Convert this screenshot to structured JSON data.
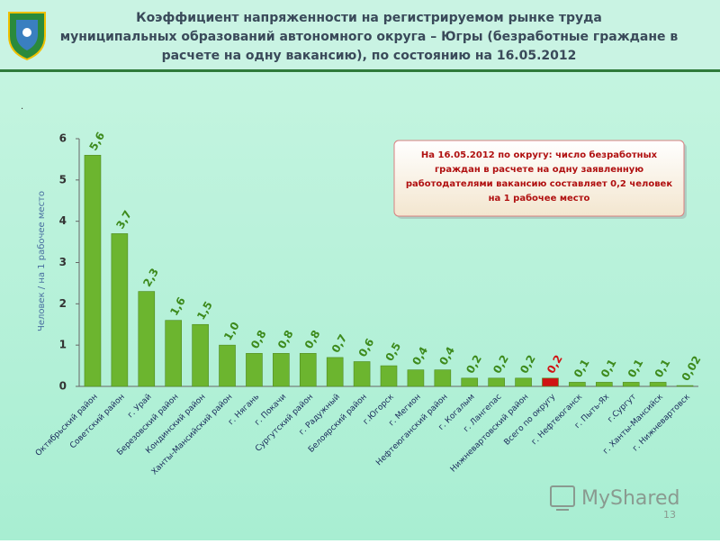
{
  "header": {
    "title": [
      "Коэффициент напряженности на регистрируемом рынке труда",
      "муниципальных образований автономного округа – Югры (безработные граждане в",
      "расчете на одну вакансию), по состоянию на 16.05.2012"
    ]
  },
  "chart_data": {
    "type": "bar",
    "ylabel": "Человек / на 1 рабочее место",
    "categories": [
      "Октябрьский район",
      "Советский район",
      "г. Урай",
      "Березовский район",
      "Кондинский район",
      "Ханты-Мансийский район",
      "г. Нягань",
      "г. Покачи",
      "Сургутский район",
      "г. Радужный",
      "Белоярский район",
      "г.Югорск",
      "г. Мегион",
      "Нефтеюганский район",
      "г. Когалым",
      "г. Лангепас",
      "Нижневартовский район",
      "Всего по округу",
      "г. Нефтеюганск",
      "г. Пыть-Ях",
      "г.Сургут",
      "г. Ханты-Мансийск",
      "г. Нижневартовск"
    ],
    "values": [
      5.6,
      3.7,
      2.3,
      1.6,
      1.5,
      1.0,
      0.8,
      0.8,
      0.8,
      0.7,
      0.6,
      0.5,
      0.4,
      0.4,
      0.2,
      0.2,
      0.2,
      0.2,
      0.1,
      0.1,
      0.1,
      0.1,
      0.02
    ],
    "value_labels": [
      "5,6",
      "3,7",
      "2,3",
      "1,6",
      "1,5",
      "1,0",
      "0,8",
      "0,8",
      "0,8",
      "0,7",
      "0,6",
      "0,5",
      "0,4",
      "0,4",
      "0,2",
      "0,2",
      "0,2",
      "0,2",
      "0,1",
      "0,1",
      "0,1",
      "0,1",
      "0,02"
    ],
    "colors": [
      "#6cb52f",
      "#6cb52f",
      "#6cb52f",
      "#6cb52f",
      "#6cb52f",
      "#6cb52f",
      "#6cb52f",
      "#6cb52f",
      "#6cb52f",
      "#6cb52f",
      "#6cb52f",
      "#6cb52f",
      "#6cb52f",
      "#6cb52f",
      "#6cb52f",
      "#6cb52f",
      "#6cb52f",
      "#d01414",
      "#6cb52f",
      "#6cb52f",
      "#6cb52f",
      "#6cb52f",
      "#6cb52f"
    ],
    "ylim": [
      0,
      6
    ],
    "yticks": [
      0,
      1,
      2,
      3,
      4,
      5,
      6
    ],
    "grid": false,
    "annotation": [
      "На 16.05.2012 по округу: число безработных",
      "граждан в расчете на одну заявленную",
      "работодателями вакансию составляет 0,2 человек",
      "на 1 рабочее место"
    ]
  },
  "footer": {
    "page": "13",
    "watermark": "MyShared"
  }
}
